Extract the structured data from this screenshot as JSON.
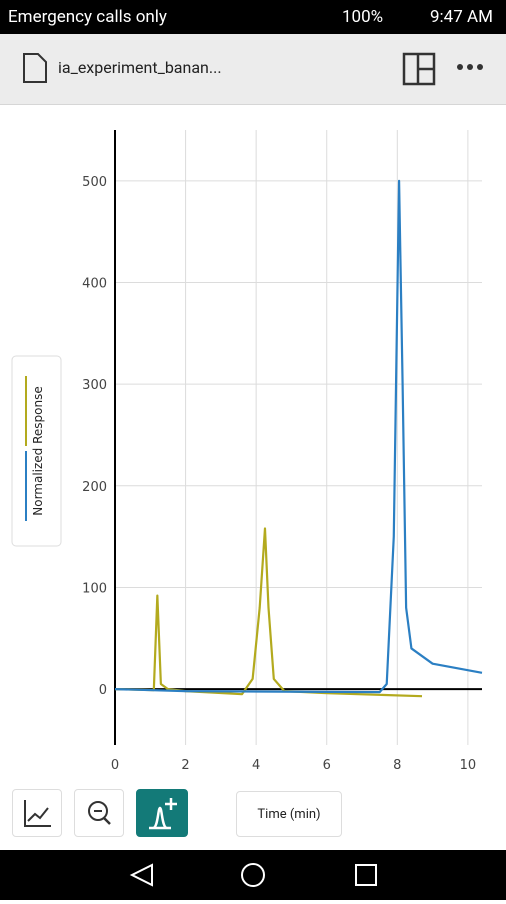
{
  "status_bar": {
    "carrier": "Emergency calls only",
    "battery": "100%",
    "time": "9:47 AM"
  },
  "toolbar": {
    "file_name": "ia_experiment_banan..."
  },
  "x_axis_button": "Time (min)",
  "chart_data": {
    "type": "line",
    "ylabel": "Normalized Response",
    "xlim": [
      0,
      10.4
    ],
    "ylim": [
      -55,
      550
    ],
    "xticks": [
      0,
      2,
      4,
      6,
      8,
      10
    ],
    "yticks": [
      0,
      100,
      200,
      300,
      400,
      500
    ],
    "grid": true,
    "series": [
      {
        "color": "#b3aa1e",
        "x": [
          0,
          1.1,
          1.2,
          1.3,
          1.5,
          2,
          3.6,
          3.9,
          4.1,
          4.25,
          4.35,
          4.5,
          4.8,
          6,
          8.7
        ],
        "values": [
          0,
          -1,
          92,
          5,
          0,
          -2,
          -5,
          10,
          80,
          158,
          80,
          10,
          -2,
          -4,
          -7
        ]
      },
      {
        "color": "#2b7fc3",
        "x": [
          0,
          2,
          7.5,
          7.7,
          7.9,
          8.05,
          8.15,
          8.25,
          8.4,
          9,
          10.4
        ],
        "values": [
          0,
          -2,
          -3,
          5,
          150,
          500,
          300,
          80,
          40,
          25,
          16
        ]
      }
    ]
  }
}
